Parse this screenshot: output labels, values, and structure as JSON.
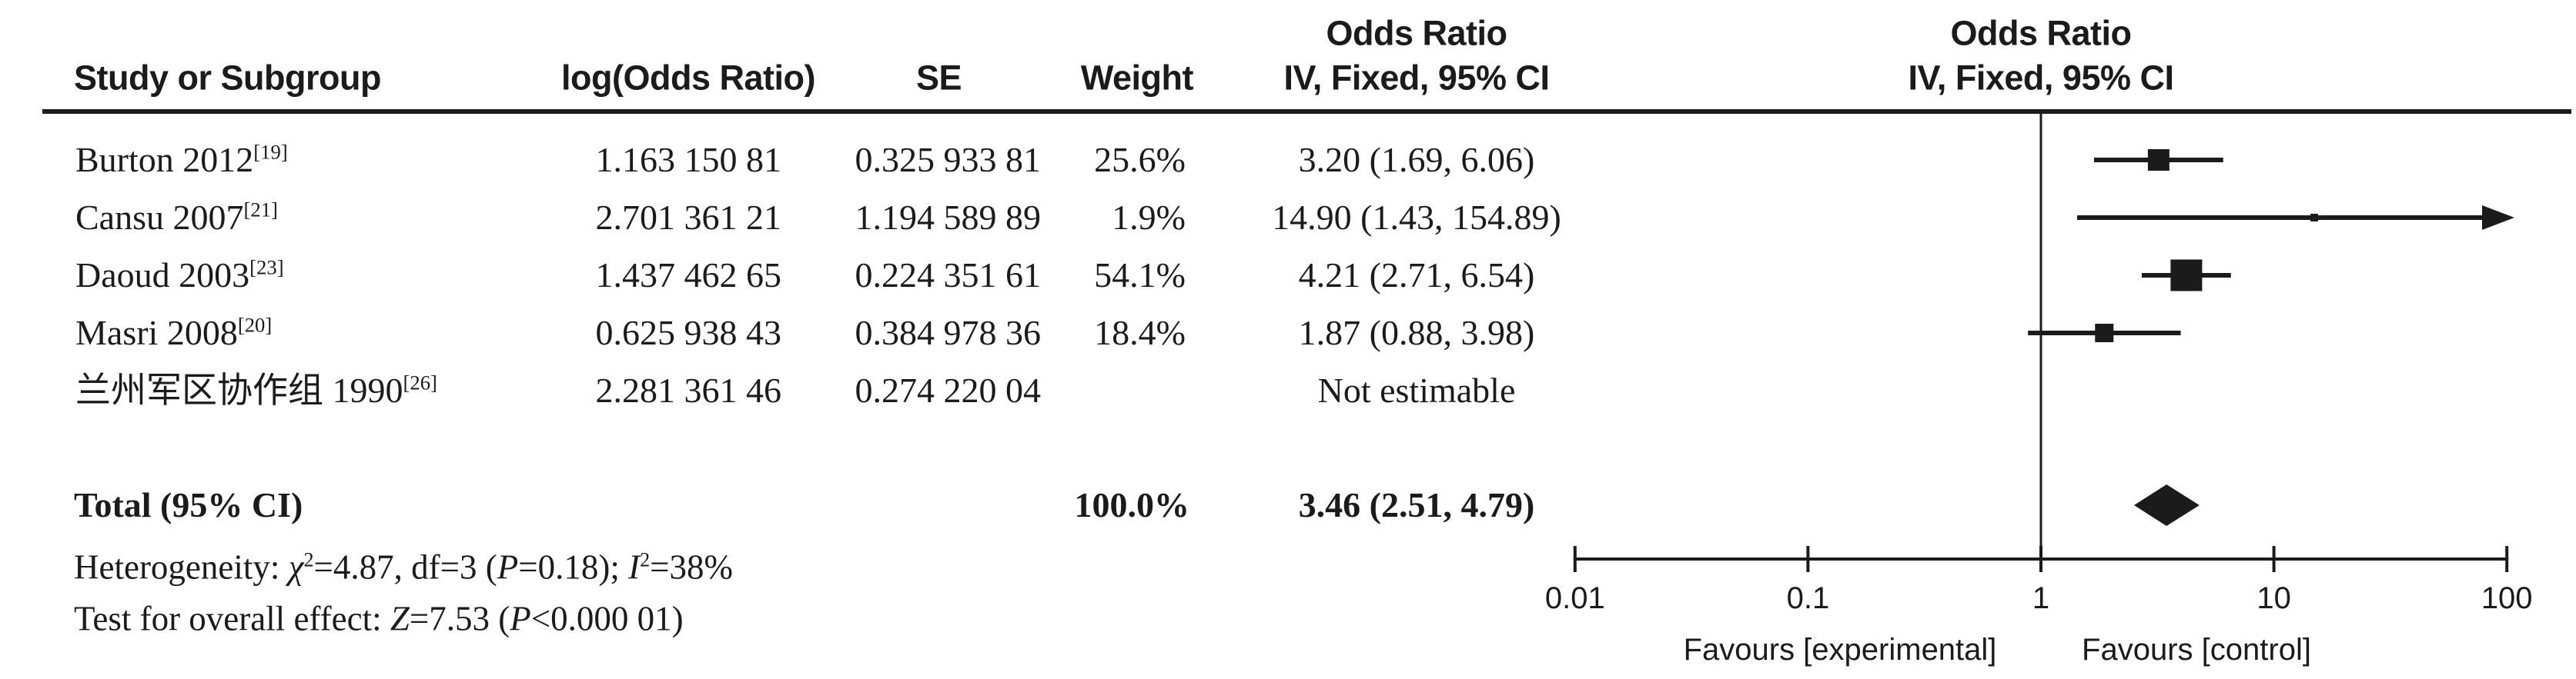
{
  "figure": {
    "or_column_header_top": "Odds Ratio",
    "or_column_header_sub": "IV, Fixed, 95% CI",
    "plot_header_top": "Odds Ratio",
    "plot_header_sub": "IV, Fixed, 95% CI"
  },
  "table": {
    "col_study": "Study or Subgroup",
    "col_log_or": "log(Odds Ratio)",
    "col_se": "SE",
    "col_weight": "Weight",
    "rows": [
      {
        "study": "Burton 2012",
        "ref": "[19]",
        "log_or": "1.163 150 81",
        "se": "0.325 933 81",
        "weight": "25.6%",
        "or_ci": "3.20 (1.69, 6.06)"
      },
      {
        "study": "Cansu 2007",
        "ref": "[21]",
        "log_or": "2.701 361 21",
        "se": "1.194 589 89",
        "weight": "1.9%",
        "or_ci": "14.90 (1.43, 154.89)"
      },
      {
        "study": "Daoud 2003",
        "ref": "[23]",
        "log_or": "1.437 462 65",
        "se": "0.224 351 61",
        "weight": "54.1%",
        "or_ci": "4.21 (2.71, 6.54)"
      },
      {
        "study": "Masri 2008",
        "ref": "[20]",
        "log_or": "0.625 938 43",
        "se": "0.384 978 36",
        "weight": "18.4%",
        "or_ci": "1.87 (0.88, 3.98)"
      },
      {
        "study": "兰州军区协作组 1990",
        "ref": "[26]",
        "log_or": "2.281 361 46",
        "se": "0.274 220 04",
        "weight": "",
        "or_ci": "Not estimable"
      }
    ],
    "total": {
      "label": "Total (95% CI)",
      "weight": "100.0%",
      "or_ci": "3.46 (2.51, 4.79)"
    }
  },
  "stats": {
    "heterogeneity": [
      {
        "text": "Heterogeneity: "
      },
      {
        "text": "χ",
        "italic": true
      },
      {
        "text": "2",
        "sup": true
      },
      {
        "text": "=4.87, df=3 ("
      },
      {
        "text": "P",
        "italic": true
      },
      {
        "text": "=0.18); "
      },
      {
        "text": "I",
        "italic": true
      },
      {
        "text": "2",
        "sup": true
      },
      {
        "text": "=38%"
      }
    ],
    "overall_effect": [
      {
        "text": "Test for overall effect: "
      },
      {
        "text": "Z",
        "italic": true
      },
      {
        "text": "=7.53 ("
      },
      {
        "text": "P",
        "italic": true
      },
      {
        "text": "<0.000 01)"
      }
    ]
  },
  "chart_data": {
    "type": "forest",
    "x_scale": "log10",
    "xlim": [
      0.01,
      100
    ],
    "null_line": 1,
    "axis_ticks": [
      0.01,
      0.1,
      1,
      10,
      100
    ],
    "axis_tick_labels": [
      "0.01",
      "0.1",
      "1",
      "10",
      "100"
    ],
    "effect_measure": "Odds Ratio, IV, Fixed, 95% CI",
    "studies": [
      {
        "name": "Burton 2012",
        "or": 3.2,
        "ci_low": 1.69,
        "ci_high": 6.06,
        "weight_pct": 25.6,
        "arrow_right": false
      },
      {
        "name": "Cansu 2007",
        "or": 14.9,
        "ci_low": 1.43,
        "ci_high": 154.89,
        "weight_pct": 1.9,
        "arrow_right": true
      },
      {
        "name": "Daoud 2003",
        "or": 4.21,
        "ci_low": 2.71,
        "ci_high": 6.54,
        "weight_pct": 54.1,
        "arrow_right": false
      },
      {
        "name": "Masri 2008",
        "or": 1.87,
        "ci_low": 0.88,
        "ci_high": 3.98,
        "weight_pct": 18.4,
        "arrow_right": false
      },
      {
        "name": "兰州军区协作组 1990",
        "or": null,
        "ci_low": null,
        "ci_high": null,
        "weight_pct": null,
        "not_estimable": true
      }
    ],
    "total": {
      "or": 3.46,
      "ci_low": 2.51,
      "ci_high": 4.79,
      "weight_pct": 100.0
    },
    "favours_left": "Favours [experimental]",
    "favours_right": "Favours [control]",
    "marker_color": "#1b1b1b"
  }
}
